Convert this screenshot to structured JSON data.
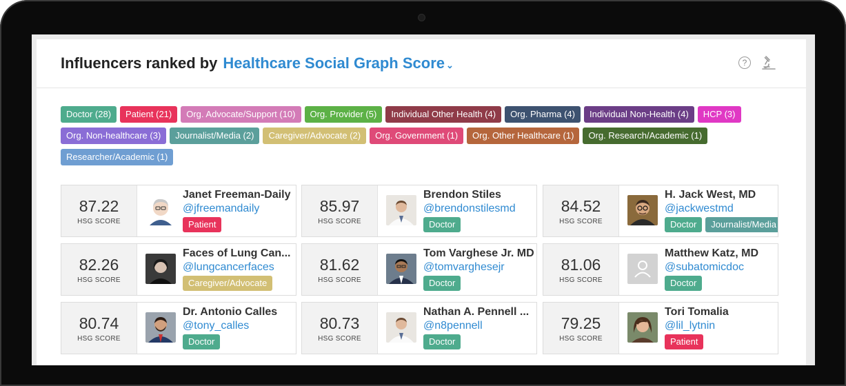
{
  "header": {
    "title_prefix": "Influencers ranked by",
    "title_metric": "Healthcare Social Graph Score",
    "caret": "⌄",
    "help_glyph": "?"
  },
  "tags": [
    {
      "label": "Doctor (28)",
      "color": "#4eab8d"
    },
    {
      "label": "Patient (21)",
      "color": "#e8335b"
    },
    {
      "label": "Org. Advocate/Support (10)",
      "color": "#d37bb7"
    },
    {
      "label": "Org. Provider (5)",
      "color": "#5cb146"
    },
    {
      "label": "Individual Other Health (4)",
      "color": "#8f3b48"
    },
    {
      "label": "Org. Pharma (4)",
      "color": "#3d5270"
    },
    {
      "label": "Individual Non-Health (4)",
      "color": "#6b3d86"
    },
    {
      "label": "HCP (3)",
      "color": "#e038c4"
    },
    {
      "label": "Org. Non-healthcare (3)",
      "color": "#8a6dd6"
    },
    {
      "label": "Journalist/Media (2)",
      "color": "#5b9f9b"
    },
    {
      "label": "Caregiver/Advocate (2)",
      "color": "#d2bf74"
    },
    {
      "label": "Org. Government (1)",
      "color": "#df4a78"
    },
    {
      "label": "Org. Other Healthcare (1)",
      "color": "#b5663c"
    },
    {
      "label": "Org. Research/Academic (1)",
      "color": "#466b2f"
    },
    {
      "label": "Researcher/Academic (1)",
      "color": "#6f9ed2"
    }
  ],
  "score_label": "HSG SCORE",
  "influencers": [
    {
      "score": "87.22",
      "name": "Janet Freeman-Daily",
      "handle": "@jfreemandaily",
      "avatar": "cartoon",
      "badges": [
        {
          "label": "Patient",
          "color": "#e8335b"
        }
      ]
    },
    {
      "score": "85.97",
      "name": "Brendon Stiles",
      "handle": "@brendonstilesmd",
      "avatar": "white-coat",
      "badges": [
        {
          "label": "Doctor",
          "color": "#4eab8d"
        }
      ]
    },
    {
      "score": "84.52",
      "name": "H. Jack West, MD",
      "handle": "@jackwestmd",
      "avatar": "glasses",
      "badges": [
        {
          "label": "Doctor",
          "color": "#4eab8d"
        },
        {
          "label": "Journalist/Media",
          "color": "#5b9f9b"
        }
      ]
    },
    {
      "score": "82.26",
      "name": "Faces of Lung Can...",
      "handle": "@lungcancerfaces",
      "avatar": "dark",
      "badges": [
        {
          "label": "Caregiver/Advocate",
          "color": "#d2bf74"
        }
      ]
    },
    {
      "score": "81.62",
      "name": "Tom Varghese Jr. MD",
      "handle": "@tomvarghesejr",
      "avatar": "suit",
      "badges": [
        {
          "label": "Doctor",
          "color": "#4eab8d"
        }
      ]
    },
    {
      "score": "81.06",
      "name": "Matthew Katz, MD",
      "handle": "@subatomicdoc",
      "avatar": "placeholder",
      "badges": [
        {
          "label": "Doctor",
          "color": "#4eab8d"
        }
      ]
    },
    {
      "score": "80.74",
      "name": "Dr. Antonio Calles",
      "handle": "@tony_calles",
      "avatar": "beard",
      "badges": [
        {
          "label": "Doctor",
          "color": "#4eab8d"
        }
      ]
    },
    {
      "score": "80.73",
      "name": "Nathan A. Pennell ...",
      "handle": "@n8pennell",
      "avatar": "white-coat",
      "badges": [
        {
          "label": "Doctor",
          "color": "#4eab8d"
        }
      ]
    },
    {
      "score": "79.25",
      "name": "Tori Tomalia",
      "handle": "@lil_lytnin",
      "avatar": "woman",
      "badges": [
        {
          "label": "Patient",
          "color": "#e8335b"
        }
      ]
    }
  ]
}
